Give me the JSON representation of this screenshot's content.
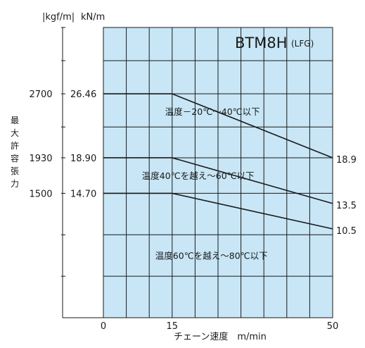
{
  "chart_data": {
    "type": "line",
    "title": "BTM8H",
    "subtitle": "(LFG)",
    "units": {
      "kgf": "|kgf/m|",
      "kn": "kN/m"
    },
    "ylabel": "最大許容張力",
    "xlabel": "チェーン速度　m/min",
    "xlim": [
      0,
      50
    ],
    "ylim": [
      0,
      34.3
    ],
    "x_ticks": [
      0,
      15,
      50
    ],
    "y_ticks": [
      14.7,
      18.9,
      26.46
    ],
    "y_ticks_kgf": [
      1500,
      1930,
      2700
    ],
    "x_grid": [
      0,
      5,
      10,
      15,
      20,
      25,
      30,
      35,
      40,
      45,
      50
    ],
    "y_grid": [
      0,
      4.9,
      9.8,
      14.7,
      18.9,
      22.54,
      26.46,
      30.38,
      34.3
    ],
    "grid": true,
    "background": "#c8e6f6",
    "line_color": "#1a1a1a",
    "series": [
      {
        "name": "温度－20℃～40℃以下",
        "x": [
          0,
          15,
          50
        ],
        "y": [
          26.46,
          26.46,
          18.9
        ],
        "end_label": "18.9"
      },
      {
        "name": "温度40℃を越え～60℃以下",
        "x": [
          0,
          15,
          50
        ],
        "y": [
          18.9,
          18.9,
          13.5
        ],
        "end_label": "13.5"
      },
      {
        "name": "温度60℃を越え～80℃以下",
        "x": [
          0,
          15,
          50
        ],
        "y": [
          14.7,
          14.7,
          10.5
        ],
        "end_label": "10.5"
      }
    ]
  }
}
